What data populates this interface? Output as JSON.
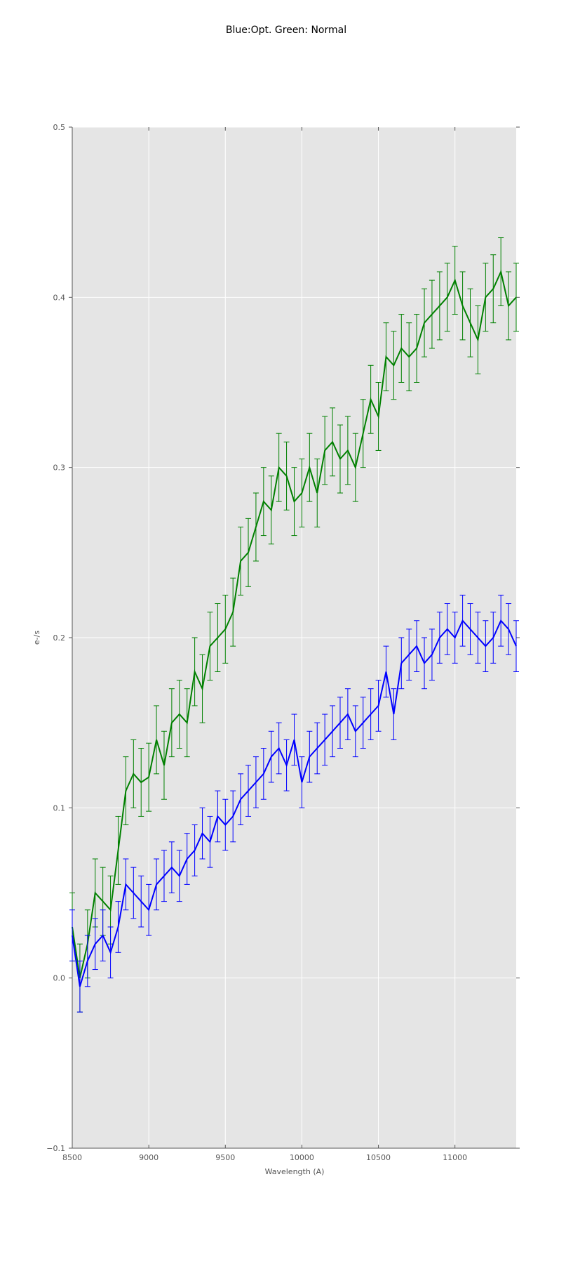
{
  "chart_data": {
    "type": "line",
    "title": "Blue:Opt. Green: Normal",
    "xlabel": "Wavelength (A)",
    "ylabel": "e-/s",
    "xlim": [
      8500,
      11400
    ],
    "ylim": [
      -0.1,
      0.5
    ],
    "xticks": [
      8500,
      9000,
      9500,
      10000,
      10500,
      11000
    ],
    "xtick_labels": [
      "8500",
      "9000",
      "9500",
      "10000",
      "10500",
      "11000"
    ],
    "yticks": [
      -0.1,
      0.0,
      0.1,
      0.2,
      0.3,
      0.4,
      0.5
    ],
    "ytick_labels": [
      "−0.1",
      "0.0",
      "0.1",
      "0.2",
      "0.3",
      "0.4",
      "0.5"
    ],
    "grid": true,
    "background": "#e5e5e5",
    "error_bars": true,
    "series": [
      {
        "color": "#008000",
        "x": [
          8500,
          8550,
          8600,
          8650,
          8700,
          8750,
          8800,
          8850,
          8900,
          8950,
          9000,
          9050,
          9100,
          9150,
          9200,
          9250,
          9300,
          9350,
          9400,
          9450,
          9500,
          9550,
          9600,
          9650,
          9700,
          9750,
          9800,
          9850,
          9900,
          9950,
          10000,
          10050,
          10100,
          10150,
          10200,
          10250,
          10300,
          10350,
          10400,
          10450,
          10500,
          10550,
          10600,
          10650,
          10700,
          10750,
          10800,
          10850,
          10900,
          10950,
          11000,
          11050,
          11100,
          11150,
          11200,
          11250,
          11300,
          11350,
          11400
        ],
        "values": [
          0.03,
          0.0,
          0.02,
          0.05,
          0.045,
          0.04,
          0.075,
          0.11,
          0.12,
          0.115,
          0.118,
          0.14,
          0.125,
          0.15,
          0.155,
          0.15,
          0.18,
          0.17,
          0.195,
          0.2,
          0.205,
          0.215,
          0.245,
          0.25,
          0.265,
          0.28,
          0.275,
          0.3,
          0.295,
          0.28,
          0.285,
          0.3,
          0.285,
          0.31,
          0.315,
          0.305,
          0.31,
          0.3,
          0.32,
          0.34,
          0.33,
          0.365,
          0.36,
          0.37,
          0.365,
          0.37,
          0.385,
          0.39,
          0.395,
          0.4,
          0.41,
          0.395,
          0.385,
          0.375,
          0.4,
          0.405,
          0.415,
          0.395,
          0.4
        ],
        "errors": [
          0.02,
          0.02,
          0.02,
          0.02,
          0.02,
          0.02,
          0.02,
          0.02,
          0.02,
          0.02,
          0.02,
          0.02,
          0.02,
          0.02,
          0.02,
          0.02,
          0.02,
          0.02,
          0.02,
          0.02,
          0.02,
          0.02,
          0.02,
          0.02,
          0.02,
          0.02,
          0.02,
          0.02,
          0.02,
          0.02,
          0.02,
          0.02,
          0.02,
          0.02,
          0.02,
          0.02,
          0.02,
          0.02,
          0.02,
          0.02,
          0.02,
          0.02,
          0.02,
          0.02,
          0.02,
          0.02,
          0.02,
          0.02,
          0.02,
          0.02,
          0.02,
          0.02,
          0.02,
          0.02,
          0.02,
          0.02,
          0.02,
          0.02,
          0.02
        ]
      },
      {
        "color": "#0000ff",
        "x": [
          8500,
          8550,
          8600,
          8650,
          8700,
          8750,
          8800,
          8850,
          8900,
          8950,
          9000,
          9050,
          9100,
          9150,
          9200,
          9250,
          9300,
          9350,
          9400,
          9450,
          9500,
          9550,
          9600,
          9650,
          9700,
          9750,
          9800,
          9850,
          9900,
          9950,
          10000,
          10050,
          10100,
          10150,
          10200,
          10250,
          10300,
          10350,
          10400,
          10450,
          10500,
          10550,
          10600,
          10650,
          10700,
          10750,
          10800,
          10850,
          10900,
          10950,
          11000,
          11050,
          11100,
          11150,
          11200,
          11250,
          11300,
          11350,
          11400
        ],
        "values": [
          0.025,
          -0.005,
          0.01,
          0.02,
          0.025,
          0.015,
          0.03,
          0.055,
          0.05,
          0.045,
          0.04,
          0.055,
          0.06,
          0.065,
          0.06,
          0.07,
          0.075,
          0.085,
          0.08,
          0.095,
          0.09,
          0.095,
          0.105,
          0.11,
          0.115,
          0.12,
          0.13,
          0.135,
          0.125,
          0.14,
          0.115,
          0.13,
          0.135,
          0.14,
          0.145,
          0.15,
          0.155,
          0.145,
          0.15,
          0.155,
          0.16,
          0.18,
          0.155,
          0.185,
          0.19,
          0.195,
          0.185,
          0.19,
          0.2,
          0.205,
          0.2,
          0.21,
          0.205,
          0.2,
          0.195,
          0.2,
          0.21,
          0.205,
          0.195
        ],
        "errors": [
          0.015,
          0.015,
          0.015,
          0.015,
          0.015,
          0.015,
          0.015,
          0.015,
          0.015,
          0.015,
          0.015,
          0.015,
          0.015,
          0.015,
          0.015,
          0.015,
          0.015,
          0.015,
          0.015,
          0.015,
          0.015,
          0.015,
          0.015,
          0.015,
          0.015,
          0.015,
          0.015,
          0.015,
          0.015,
          0.015,
          0.015,
          0.015,
          0.015,
          0.015,
          0.015,
          0.015,
          0.015,
          0.015,
          0.015,
          0.015,
          0.015,
          0.015,
          0.015,
          0.015,
          0.015,
          0.015,
          0.015,
          0.015,
          0.015,
          0.015,
          0.015,
          0.015,
          0.015,
          0.015,
          0.015,
          0.015,
          0.015,
          0.015,
          0.015
        ]
      }
    ]
  }
}
